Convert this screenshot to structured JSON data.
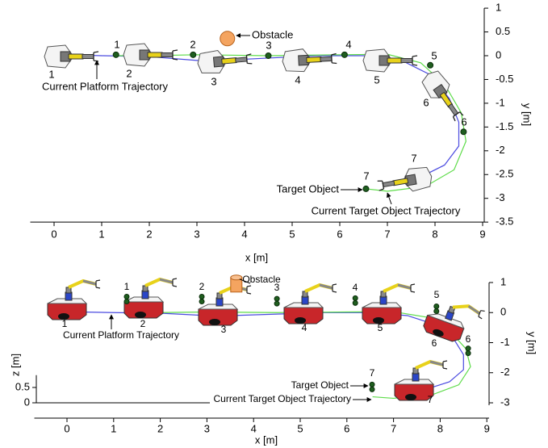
{
  "chart_data": [
    {
      "type": "line",
      "xlabel": "x [m]",
      "ylabel": "y [m]",
      "xlim": [
        -0.5,
        9
      ],
      "ylim": [
        -3.5,
        1
      ],
      "xticks": [
        0,
        1,
        2,
        3,
        4,
        5,
        6,
        7,
        8,
        9
      ],
      "yticks": [
        1,
        0.5,
        0,
        -0.5,
        -1,
        -1.5,
        -2,
        -2.5,
        -3,
        -3.5
      ],
      "series": [
        {
          "name": "Current Platform Trajectory",
          "color": "#4a4ae0",
          "x": [
            0.3,
            1,
            2,
            3,
            3.5,
            4.5,
            5.5,
            6.5,
            7.3,
            7.9,
            8.3,
            8.5,
            8.5,
            8.2,
            7.7
          ],
          "y": [
            0.02,
            0,
            -0.02,
            -0.1,
            -0.1,
            -0.05,
            0,
            0,
            -0.1,
            -0.4,
            -0.9,
            -1.4,
            -1.9,
            -2.3,
            -2.55
          ]
        },
        {
          "name": "Current Target Object Trajectory",
          "color": "#5edc4a",
          "x": [
            1.3,
            2,
            3,
            4.5,
            6,
            7,
            7.7,
            8.2,
            8.55,
            8.65,
            8.4,
            7.8,
            7,
            6.55
          ],
          "y": [
            0,
            0,
            0.02,
            0,
            0.02,
            0.03,
            -0.15,
            -0.6,
            -1.2,
            -1.8,
            -2.4,
            -2.75,
            -2.85,
            -2.8
          ]
        }
      ],
      "targets": {
        "name": "Target Object",
        "color": "#1f5e1f",
        "labels": [
          "1",
          "2",
          "3",
          "4",
          "5",
          "6",
          "7"
        ],
        "x": [
          1.3,
          2.92,
          4.5,
          6.1,
          7.9,
          8.6,
          6.55
        ],
        "y": [
          0.02,
          0.02,
          0,
          0.02,
          -0.2,
          -1.6,
          -2.8
        ]
      },
      "obstacle": {
        "name": "Obstacle",
        "color": "#f4a460",
        "x": 3.64,
        "y": 0.36
      },
      "robot_labels": [
        "1",
        "2",
        "3",
        "4",
        "5",
        "6",
        "7"
      ]
    },
    {
      "type": "line3d",
      "xlabel": "x [m]",
      "ylabel": "y [m]",
      "zlabel": "z [m]",
      "xlim": [
        -0.7,
        9
      ],
      "ylim": [
        -3,
        1
      ],
      "zlim": [
        0,
        0.9
      ],
      "xticks": [
        0,
        1,
        2,
        3,
        4,
        5,
        6,
        7,
        8,
        9
      ],
      "yticks": [
        1,
        0,
        -1,
        -2,
        -3
      ],
      "zticks": [
        0,
        0.5
      ],
      "series": [
        {
          "name": "Current Platform Trajectory",
          "color": "#4a4ae0",
          "x": [
            0.3,
            1,
            2,
            3,
            3.5,
            4.5,
            5.5,
            6.5,
            7.3,
            7.9,
            8.3,
            8.5,
            8.5,
            8.2,
            7.7
          ],
          "y": [
            0.02,
            0,
            -0.02,
            -0.1,
            -0.1,
            -0.05,
            0,
            0,
            -0.1,
            -0.4,
            -0.9,
            -1.4,
            -1.9,
            -2.3,
            -2.55
          ],
          "z": [
            0,
            0,
            0,
            0,
            0,
            0,
            0,
            0,
            0,
            0,
            0,
            0,
            0,
            0,
            0
          ]
        },
        {
          "name": "Current Target Object Trajectory",
          "color": "#5edc4a",
          "x": [
            1.3,
            2,
            3,
            4.5,
            6,
            7,
            7.7,
            8.2,
            8.55,
            8.65,
            8.4,
            7.8,
            7,
            6.55
          ],
          "y": [
            0,
            0,
            0.02,
            0,
            0.02,
            0.03,
            -0.15,
            -0.6,
            -1.2,
            -1.8,
            -2.4,
            -2.75,
            -2.85,
            -2.8
          ],
          "z": [
            0,
            0,
            0,
            0,
            0,
            0,
            0,
            0,
            0,
            0,
            0,
            0,
            0,
            0
          ]
        }
      ],
      "targets": {
        "name": "Target Object",
        "color": "#1f5e1f",
        "labels": [
          "1",
          "2",
          "3",
          "4",
          "5",
          "6",
          "7"
        ],
        "x": [
          1.28,
          2.89,
          4.5,
          6.18,
          7.92,
          8.6,
          6.54
        ],
        "y": [
          0.02,
          0.02,
          0,
          0.02,
          -0.2,
          -1.6,
          -2.8
        ],
        "z": [
          0.5,
          0.5,
          0.45,
          0.45,
          0.4,
          0.4,
          0.4
        ]
      },
      "obstacle": {
        "name": "Obstacle",
        "color": "#f4a460",
        "x": 3.63,
        "y": 0.36,
        "z": 0.58
      },
      "robot_labels": [
        "1",
        "2",
        "3",
        "4",
        "5",
        "6",
        "7"
      ]
    }
  ]
}
